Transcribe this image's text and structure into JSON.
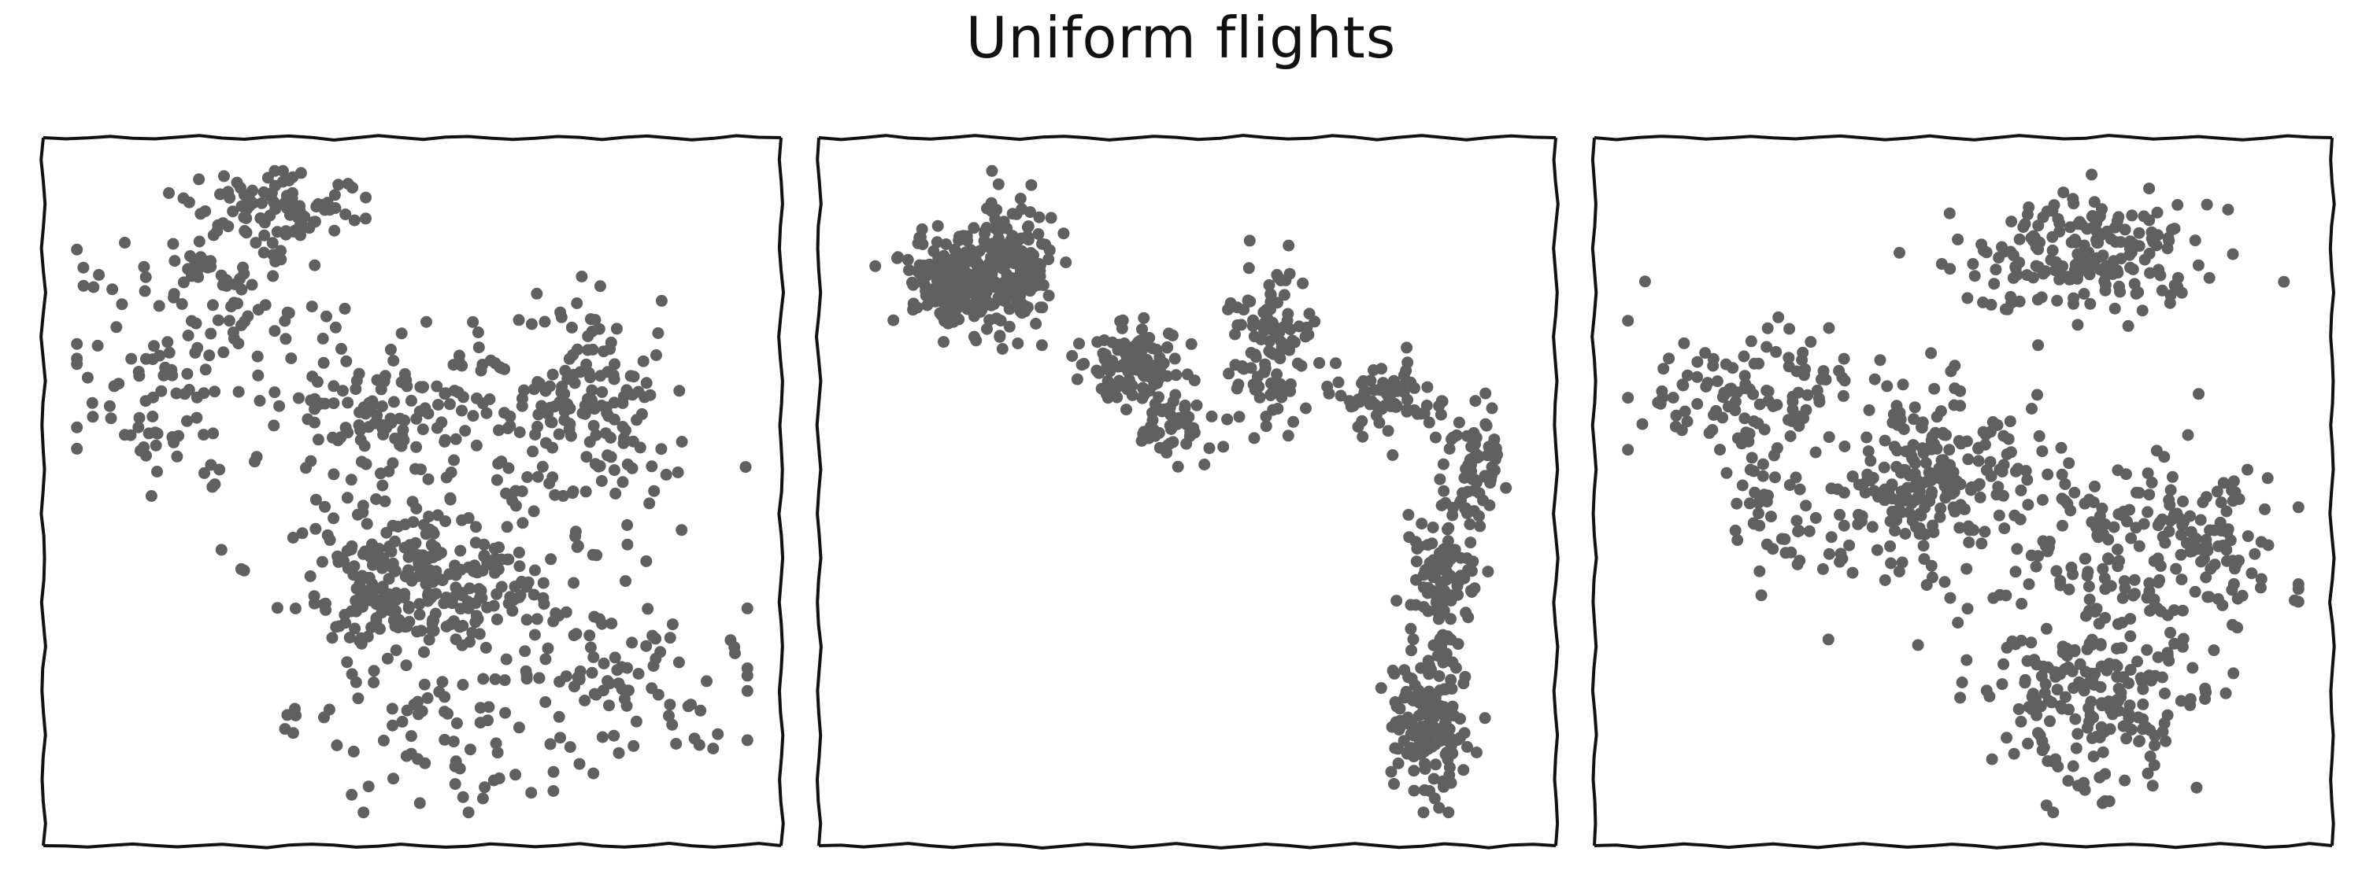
{
  "title": "Uniform flights",
  "style": {
    "point_color": "#606060",
    "frame_color": "#111111",
    "background": "#ffffff"
  },
  "chart_data": [
    {
      "type": "scatter",
      "panel": "left",
      "title": "",
      "xlabel": "",
      "ylabel": "",
      "axes_visible": false,
      "grid": false,
      "xlim": [
        0,
        100
      ],
      "ylim": [
        0,
        100
      ],
      "n_points": 1000,
      "clusters": [
        {
          "center": [
            31,
            94
          ],
          "spread": [
            6.0,
            3.0
          ],
          "weight": 0.09
        },
        {
          "center": [
            21,
            80
          ],
          "spread": [
            7.0,
            5.0
          ],
          "weight": 0.08
        },
        {
          "center": [
            12,
            63
          ],
          "spread": [
            7.0,
            7.0
          ],
          "weight": 0.07
        },
        {
          "center": [
            48,
            63
          ],
          "spread": [
            9.0,
            6.0
          ],
          "weight": 0.13
        },
        {
          "center": [
            76,
            65
          ],
          "spread": [
            6.0,
            7.0
          ],
          "weight": 0.13
        },
        {
          "center": [
            49,
            36
          ],
          "spread": [
            8.0,
            6.0
          ],
          "weight": 0.22
        },
        {
          "center": [
            64,
            42
          ],
          "spread": [
            13.0,
            11.0
          ],
          "weight": 0.14
        },
        {
          "center": [
            53,
            13
          ],
          "spread": [
            11.0,
            6.0
          ],
          "weight": 0.06
        },
        {
          "center": [
            80,
            22
          ],
          "spread": [
            9.0,
            8.0
          ],
          "weight": 0.08
        }
      ]
    },
    {
      "type": "scatter",
      "panel": "middle",
      "title": "",
      "xlabel": "",
      "ylabel": "",
      "axes_visible": false,
      "grid": false,
      "xlim": [
        0,
        100
      ],
      "ylim": [
        0,
        100
      ],
      "n_points": 1000,
      "clusters": [
        {
          "center": [
            18,
            82
          ],
          "spread": [
            4.5,
            3.5
          ],
          "weight": 0.25
        },
        {
          "center": [
            25,
            86
          ],
          "spread": [
            3.0,
            5.0
          ],
          "weight": 0.1
        },
        {
          "center": [
            42,
            70
          ],
          "spread": [
            3.5,
            3.0
          ],
          "weight": 0.11
        },
        {
          "center": [
            47,
            61
          ],
          "spread": [
            4.0,
            3.5
          ],
          "weight": 0.05
        },
        {
          "center": [
            62,
            72
          ],
          "spread": [
            3.0,
            6.0
          ],
          "weight": 0.11
        },
        {
          "center": [
            80,
            64
          ],
          "spread": [
            4.5,
            2.5
          ],
          "weight": 0.07
        },
        {
          "center": [
            92,
            55
          ],
          "spread": [
            2.0,
            5.0
          ],
          "weight": 0.06
        },
        {
          "center": [
            87,
            36
          ],
          "spread": [
            2.5,
            6.0
          ],
          "weight": 0.11
        },
        {
          "center": [
            85,
            14
          ],
          "spread": [
            3.0,
            5.0
          ],
          "weight": 0.14
        }
      ]
    },
    {
      "type": "scatter",
      "panel": "right",
      "title": "",
      "xlabel": "",
      "ylabel": "",
      "axes_visible": false,
      "grid": false,
      "xlim": [
        0,
        100
      ],
      "ylim": [
        0,
        100
      ],
      "n_points": 1000,
      "clusters": [
        {
          "center": [
            67,
            84
          ],
          "spread": [
            10.0,
            4.0
          ],
          "weight": 0.13
        },
        {
          "center": [
            70,
            90
          ],
          "spread": [
            7.0,
            3.0
          ],
          "weight": 0.07
        },
        {
          "center": [
            17,
            66
          ],
          "spread": [
            9.0,
            5.0
          ],
          "weight": 0.11
        },
        {
          "center": [
            21,
            46
          ],
          "spread": [
            3.5,
            6.0
          ],
          "weight": 0.04
        },
        {
          "center": [
            43,
            50
          ],
          "spread": [
            8.0,
            8.0
          ],
          "weight": 0.2
        },
        {
          "center": [
            50,
            58
          ],
          "spread": [
            6.0,
            5.0
          ],
          "weight": 0.05
        },
        {
          "center": [
            77,
            41
          ],
          "spread": [
            11.0,
            8.0
          ],
          "weight": 0.21
        },
        {
          "center": [
            69,
            18
          ],
          "spread": [
            8.0,
            7.0
          ],
          "weight": 0.19
        }
      ]
    }
  ]
}
